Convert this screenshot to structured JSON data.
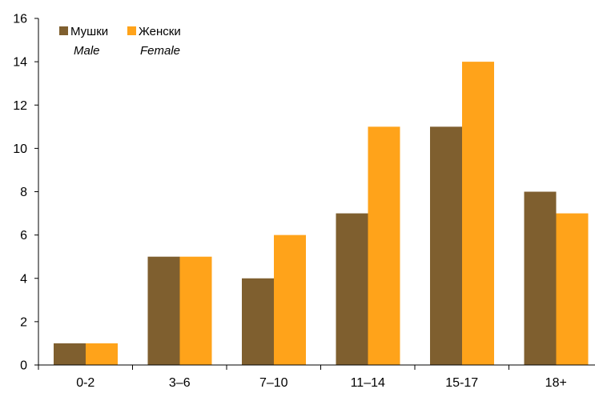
{
  "chart_data": {
    "type": "bar",
    "categories": [
      "0-2",
      "3–6",
      "7–10",
      "11–14",
      "15-17",
      "18+"
    ],
    "series": [
      {
        "name": "Мушки",
        "name_en": "Male",
        "color": "#7f5f2f",
        "values": [
          1,
          5,
          4,
          7,
          11,
          8
        ]
      },
      {
        "name": "Женски",
        "name_en": "Female",
        "color": "#ffa31a",
        "values": [
          1,
          5,
          6,
          11,
          14,
          7
        ]
      }
    ],
    "ylim": [
      0,
      16
    ],
    "yticks": [
      0,
      2,
      4,
      6,
      8,
      10,
      12,
      14,
      16
    ],
    "grid": false,
    "legend_position": "top-left",
    "title": "",
    "xlabel": "",
    "ylabel": ""
  }
}
